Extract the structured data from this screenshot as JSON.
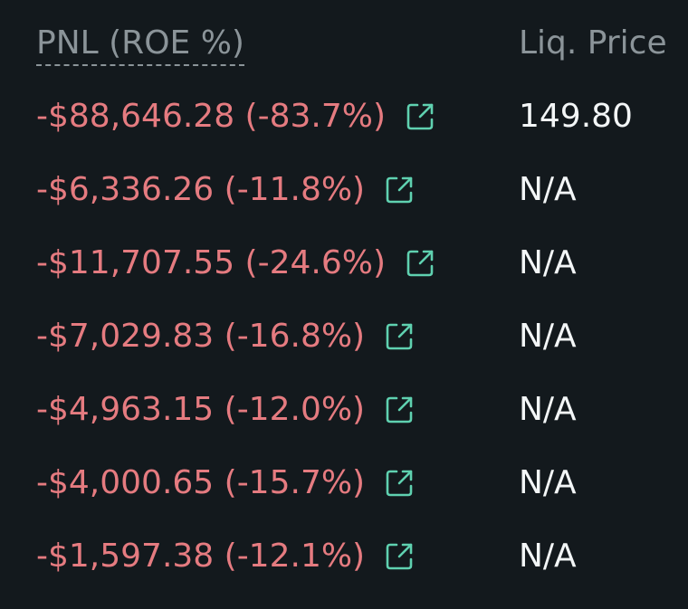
{
  "header": {
    "pnl_label": "PNL (ROE %)",
    "liq_label": "Liq. Price"
  },
  "colors": {
    "background": "#13191d",
    "negative": "#e57b80",
    "icon_accent": "#5fd1b0",
    "header_text": "#8b9499",
    "value_text": "#f3f6f7"
  },
  "rows": [
    {
      "pnl": "-$88,646.28 (-83.7%)",
      "liq_price": "149.80",
      "icon": "share-icon"
    },
    {
      "pnl": "-$6,336.26 (-11.8%)",
      "liq_price": "N/A",
      "icon": "share-icon"
    },
    {
      "pnl": "-$11,707.55 (-24.6%)",
      "liq_price": "N/A",
      "icon": "share-icon"
    },
    {
      "pnl": "-$7,029.83 (-16.8%)",
      "liq_price": "N/A",
      "icon": "share-icon"
    },
    {
      "pnl": "-$4,963.15 (-12.0%)",
      "liq_price": "N/A",
      "icon": "share-icon"
    },
    {
      "pnl": "-$4,000.65 (-15.7%)",
      "liq_price": "N/A",
      "icon": "share-icon"
    },
    {
      "pnl": "-$1,597.38 (-12.1%)",
      "liq_price": "N/A",
      "icon": "share-icon"
    }
  ]
}
